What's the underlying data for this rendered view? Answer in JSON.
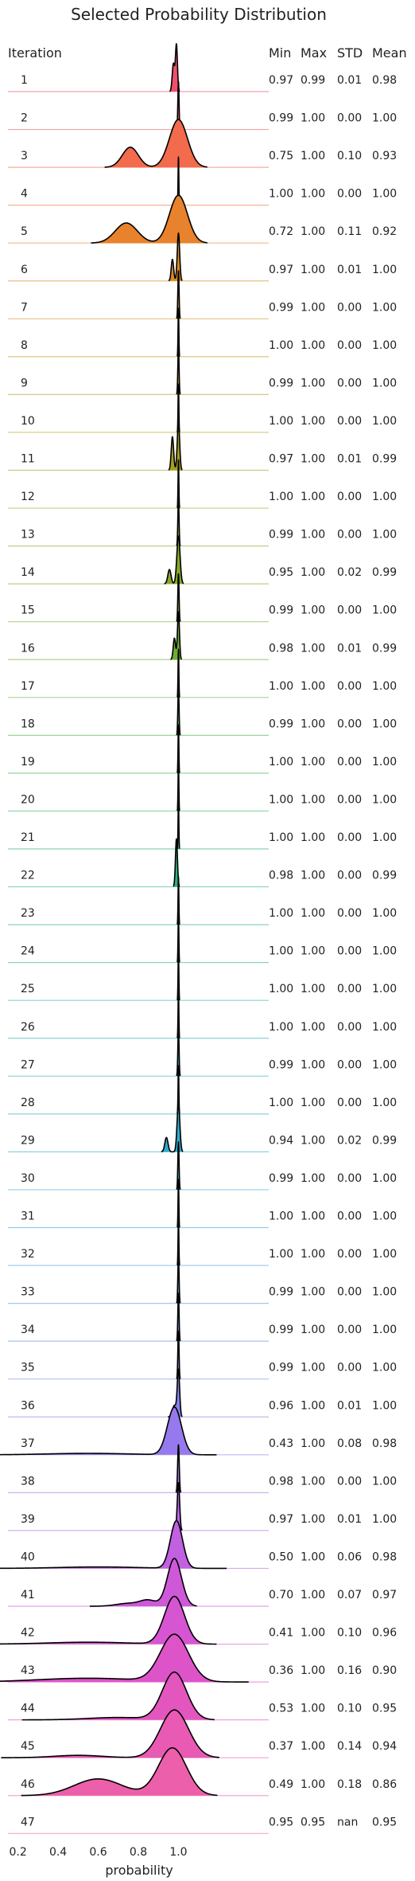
{
  "chart_data": {
    "type": "ridgeline",
    "title": "Selected Probability Distribution",
    "row_header": "Iteration",
    "stat_headers": [
      "Min",
      "Max",
      "STD",
      "Mean"
    ],
    "xlabel": "probability",
    "xlim": [
      0.15,
      1.45
    ],
    "xticks": [
      0.2,
      0.4,
      0.6,
      0.8,
      1.0
    ],
    "xtick_labels": [
      "0.2",
      "0.4",
      "0.6",
      "0.8",
      "1.0"
    ],
    "rows": [
      {
        "iteration": "1",
        "min": "0.97",
        "max": "0.99",
        "std": "0.01",
        "mean": "0.98",
        "color": "#f0506c",
        "peaks": [
          [
            0.975,
            0.006,
            0.6
          ],
          [
            0.99,
            0.005,
            1.0
          ]
        ]
      },
      {
        "iteration": "2",
        "min": "0.99",
        "max": "1.00",
        "std": "0.00",
        "mean": "1.00",
        "color": "#f2584f",
        "peaks": [
          [
            1.0,
            0.003,
            1.0
          ]
        ]
      },
      {
        "iteration": "3",
        "min": "0.75",
        "max": "1.00",
        "std": "0.10",
        "mean": "0.93",
        "color": "#f26b4c",
        "peaks": [
          [
            0.76,
            0.04,
            0.42
          ],
          [
            1.0,
            0.045,
            1.0
          ]
        ]
      },
      {
        "iteration": "4",
        "min": "1.00",
        "max": "1.00",
        "std": "0.00",
        "mean": "1.00",
        "color": "#f07840",
        "peaks": [
          [
            1.0,
            0.002,
            1.0
          ]
        ]
      },
      {
        "iteration": "5",
        "min": "0.72",
        "max": "1.00",
        "std": "0.11",
        "mean": "0.92",
        "color": "#e8822c",
        "peaks": [
          [
            0.74,
            0.055,
            0.42
          ],
          [
            1.0,
            0.045,
            1.0
          ]
        ]
      },
      {
        "iteration": "6",
        "min": "0.97",
        "max": "1.00",
        "std": "0.01",
        "mean": "1.00",
        "color": "#d98a24",
        "peaks": [
          [
            0.97,
            0.006,
            0.45
          ],
          [
            1.0,
            0.006,
            1.0
          ]
        ]
      },
      {
        "iteration": "7",
        "min": "0.99",
        "max": "1.00",
        "std": "0.00",
        "mean": "1.00",
        "color": "#cf9020",
        "peaks": [
          [
            1.0,
            0.003,
            1.0
          ]
        ]
      },
      {
        "iteration": "8",
        "min": "1.00",
        "max": "1.00",
        "std": "0.00",
        "mean": "1.00",
        "color": "#c4951d",
        "peaks": [
          [
            1.0,
            0.002,
            1.0
          ]
        ]
      },
      {
        "iteration": "9",
        "min": "0.99",
        "max": "1.00",
        "std": "0.00",
        "mean": "1.00",
        "color": "#ba991c",
        "peaks": [
          [
            1.0,
            0.003,
            1.0
          ]
        ]
      },
      {
        "iteration": "10",
        "min": "1.00",
        "max": "1.00",
        "std": "0.00",
        "mean": "1.00",
        "color": "#b09d1c",
        "peaks": [
          [
            1.0,
            0.002,
            1.0
          ]
        ]
      },
      {
        "iteration": "11",
        "min": "0.97",
        "max": "1.00",
        "std": "0.01",
        "mean": "0.99",
        "color": "#a6a01e",
        "peaks": [
          [
            0.97,
            0.006,
            0.7
          ],
          [
            1.0,
            0.006,
            1.0
          ]
        ]
      },
      {
        "iteration": "12",
        "min": "1.00",
        "max": "1.00",
        "std": "0.00",
        "mean": "1.00",
        "color": "#9ca320",
        "peaks": [
          [
            1.0,
            0.002,
            1.0
          ]
        ]
      },
      {
        "iteration": "13",
        "min": "0.99",
        "max": "1.00",
        "std": "0.00",
        "mean": "1.00",
        "color": "#91a624",
        "peaks": [
          [
            1.0,
            0.003,
            1.0
          ]
        ]
      },
      {
        "iteration": "14",
        "min": "0.95",
        "max": "1.00",
        "std": "0.02",
        "mean": "0.99",
        "color": "#85a828",
        "peaks": [
          [
            0.955,
            0.008,
            0.3
          ],
          [
            1.0,
            0.008,
            1.0
          ]
        ]
      },
      {
        "iteration": "15",
        "min": "0.99",
        "max": "1.00",
        "std": "0.00",
        "mean": "1.00",
        "color": "#79ab2d",
        "peaks": [
          [
            1.0,
            0.003,
            1.0
          ]
        ]
      },
      {
        "iteration": "16",
        "min": "0.98",
        "max": "1.00",
        "std": "0.01",
        "mean": "0.99",
        "color": "#6bae33",
        "peaks": [
          [
            0.98,
            0.006,
            0.45
          ],
          [
            1.0,
            0.005,
            1.0
          ]
        ]
      },
      {
        "iteration": "17",
        "min": "1.00",
        "max": "1.00",
        "std": "0.00",
        "mean": "1.00",
        "color": "#5cb03b",
        "peaks": [
          [
            1.0,
            0.002,
            1.0
          ]
        ]
      },
      {
        "iteration": "18",
        "min": "0.99",
        "max": "1.00",
        "std": "0.00",
        "mean": "1.00",
        "color": "#4db245",
        "peaks": [
          [
            1.0,
            0.003,
            1.0
          ]
        ]
      },
      {
        "iteration": "19",
        "min": "1.00",
        "max": "1.00",
        "std": "0.00",
        "mean": "1.00",
        "color": "#3fb452",
        "peaks": [
          [
            1.0,
            0.002,
            1.0
          ]
        ]
      },
      {
        "iteration": "20",
        "min": "1.00",
        "max": "1.00",
        "std": "0.00",
        "mean": "1.00",
        "color": "#33b460",
        "peaks": [
          [
            1.0,
            0.002,
            1.0
          ]
        ]
      },
      {
        "iteration": "21",
        "min": "1.00",
        "max": "1.00",
        "std": "0.00",
        "mean": "1.00",
        "color": "#2cb46f",
        "peaks": [
          [
            1.0,
            0.002,
            1.0
          ]
        ]
      },
      {
        "iteration": "22",
        "min": "0.98",
        "max": "1.00",
        "std": "0.00",
        "mean": "0.99",
        "color": "#29b37d",
        "peaks": [
          [
            0.99,
            0.005,
            1.0
          ]
        ]
      },
      {
        "iteration": "23",
        "min": "1.00",
        "max": "1.00",
        "std": "0.00",
        "mean": "1.00",
        "color": "#29b28b",
        "peaks": [
          [
            1.0,
            0.002,
            1.0
          ]
        ]
      },
      {
        "iteration": "24",
        "min": "1.00",
        "max": "1.00",
        "std": "0.00",
        "mean": "1.00",
        "color": "#2ab197",
        "peaks": [
          [
            1.0,
            0.002,
            1.0
          ]
        ]
      },
      {
        "iteration": "25",
        "min": "1.00",
        "max": "1.00",
        "std": "0.00",
        "mean": "1.00",
        "color": "#2bb0a3",
        "peaks": [
          [
            1.0,
            0.002,
            1.0
          ]
        ]
      },
      {
        "iteration": "26",
        "min": "1.00",
        "max": "1.00",
        "std": "0.00",
        "mean": "1.00",
        "color": "#2cafae",
        "peaks": [
          [
            1.0,
            0.002,
            1.0
          ]
        ]
      },
      {
        "iteration": "27",
        "min": "0.99",
        "max": "1.00",
        "std": "0.00",
        "mean": "1.00",
        "color": "#2daeb8",
        "peaks": [
          [
            1.0,
            0.003,
            1.0
          ]
        ]
      },
      {
        "iteration": "28",
        "min": "1.00",
        "max": "1.00",
        "std": "0.00",
        "mean": "1.00",
        "color": "#2facc2",
        "peaks": [
          [
            1.0,
            0.002,
            1.0
          ]
        ]
      },
      {
        "iteration": "29",
        "min": "0.94",
        "max": "1.00",
        "std": "0.02",
        "mean": "0.99",
        "color": "#31aacb",
        "peaks": [
          [
            0.94,
            0.008,
            0.3
          ],
          [
            1.0,
            0.007,
            1.0
          ]
        ]
      },
      {
        "iteration": "30",
        "min": "0.99",
        "max": "1.00",
        "std": "0.00",
        "mean": "1.00",
        "color": "#35a8d3",
        "peaks": [
          [
            1.0,
            0.003,
            1.0
          ]
        ]
      },
      {
        "iteration": "31",
        "min": "1.00",
        "max": "1.00",
        "std": "0.00",
        "mean": "1.00",
        "color": "#3ca4da",
        "peaks": [
          [
            1.0,
            0.002,
            1.0
          ]
        ]
      },
      {
        "iteration": "32",
        "min": "1.00",
        "max": "1.00",
        "std": "0.00",
        "mean": "1.00",
        "color": "#469fe0",
        "peaks": [
          [
            1.0,
            0.002,
            1.0
          ]
        ]
      },
      {
        "iteration": "33",
        "min": "0.99",
        "max": "1.00",
        "std": "0.00",
        "mean": "1.00",
        "color": "#5399e5",
        "peaks": [
          [
            1.0,
            0.003,
            1.0
          ]
        ]
      },
      {
        "iteration": "34",
        "min": "0.99",
        "max": "1.00",
        "std": "0.00",
        "mean": "1.00",
        "color": "#6392e9",
        "peaks": [
          [
            1.0,
            0.003,
            1.0
          ]
        ]
      },
      {
        "iteration": "35",
        "min": "0.99",
        "max": "1.00",
        "std": "0.00",
        "mean": "1.00",
        "color": "#748aeb",
        "peaks": [
          [
            1.0,
            0.003,
            1.0
          ]
        ]
      },
      {
        "iteration": "36",
        "min": "0.96",
        "max": "1.00",
        "std": "0.01",
        "mean": "1.00",
        "color": "#8582ec",
        "peaks": [
          [
            0.98,
            0.01,
            0.25
          ],
          [
            1.0,
            0.006,
            1.0
          ]
        ]
      },
      {
        "iteration": "37",
        "min": "0.43",
        "max": "1.00",
        "std": "0.08",
        "mean": "0.98",
        "color": "#9679ec",
        "peaks": [
          [
            0.98,
            0.035,
            1.0
          ],
          [
            0.55,
            0.2,
            0.03
          ]
        ]
      },
      {
        "iteration": "38",
        "min": "0.98",
        "max": "1.00",
        "std": "0.00",
        "mean": "1.00",
        "color": "#a570ea",
        "peaks": [
          [
            1.0,
            0.004,
            1.0
          ]
        ]
      },
      {
        "iteration": "39",
        "min": "0.97",
        "max": "1.00",
        "std": "0.01",
        "mean": "1.00",
        "color": "#b468e6",
        "peaks": [
          [
            1.0,
            0.006,
            1.0
          ]
        ]
      },
      {
        "iteration": "40",
        "min": "0.50",
        "max": "1.00",
        "std": "0.06",
        "mean": "0.98",
        "color": "#c160e0",
        "peaks": [
          [
            0.99,
            0.03,
            1.0
          ],
          [
            0.6,
            0.2,
            0.03
          ]
        ]
      },
      {
        "iteration": "41",
        "min": "0.70",
        "max": "1.00",
        "std": "0.07",
        "mean": "0.97",
        "color": "#cd59d9",
        "peaks": [
          [
            0.98,
            0.035,
            1.0
          ],
          [
            0.85,
            0.04,
            0.12
          ],
          [
            0.75,
            0.06,
            0.06
          ]
        ]
      },
      {
        "iteration": "42",
        "min": "0.41",
        "max": "1.00",
        "std": "0.10",
        "mean": "0.96",
        "color": "#d655d2",
        "peaks": [
          [
            0.98,
            0.05,
            1.0
          ],
          [
            0.55,
            0.2,
            0.04
          ]
        ]
      },
      {
        "iteration": "43",
        "min": "0.36",
        "max": "1.00",
        "std": "0.16",
        "mean": "0.90",
        "color": "#dd54c9",
        "peaks": [
          [
            0.98,
            0.07,
            1.0
          ],
          [
            0.55,
            0.25,
            0.08
          ]
        ]
      },
      {
        "iteration": "44",
        "min": "0.53",
        "max": "1.00",
        "std": "0.10",
        "mean": "0.95",
        "color": "#e356be",
        "peaks": [
          [
            0.98,
            0.06,
            1.0
          ],
          [
            0.7,
            0.15,
            0.05
          ]
        ]
      },
      {
        "iteration": "45",
        "min": "0.37",
        "max": "1.00",
        "std": "0.14",
        "mean": "0.94",
        "color": "#e85ab4",
        "peaks": [
          [
            0.98,
            0.07,
            1.0
          ],
          [
            0.5,
            0.12,
            0.05
          ]
        ]
      },
      {
        "iteration": "46",
        "min": "0.49",
        "max": "1.00",
        "std": "0.18",
        "mean": "0.86",
        "color": "#ec5faa",
        "peaks": [
          [
            0.97,
            0.07,
            1.0
          ],
          [
            0.6,
            0.12,
            0.35
          ]
        ]
      },
      {
        "iteration": "47",
        "min": "0.95",
        "max": "0.95",
        "std": "nan",
        "mean": "0.95",
        "color": "#ef65a1",
        "peaks": []
      }
    ]
  }
}
